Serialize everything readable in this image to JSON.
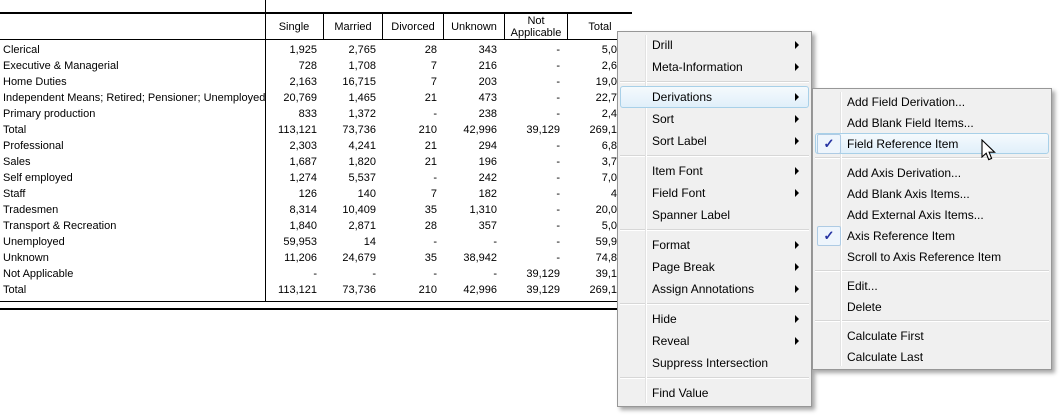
{
  "table": {
    "columns": [
      "Single",
      "Married",
      "Divorced",
      "Unknown",
      "Not Applicable",
      "Total"
    ],
    "rows": [
      {
        "label": "Clerical",
        "values": [
          "1,925",
          "2,765",
          "28",
          "343",
          "-",
          "5,0"
        ]
      },
      {
        "label": "Executive & Managerial",
        "values": [
          "728",
          "1,708",
          "7",
          "216",
          "-",
          "2,6"
        ]
      },
      {
        "label": "Home Duties",
        "values": [
          "2,163",
          "16,715",
          "7",
          "203",
          "-",
          "19,0"
        ]
      },
      {
        "label": "Independent Means; Retired; Pensioner; Unemployed",
        "values": [
          "20,769",
          "1,465",
          "21",
          "473",
          "-",
          "22,7"
        ]
      },
      {
        "label": "Primary production",
        "values": [
          "833",
          "1,372",
          "-",
          "238",
          "-",
          "2,4"
        ]
      },
      {
        "label": "Total",
        "values": [
          "113,121",
          "73,736",
          "210",
          "42,996",
          "39,129",
          "269,1"
        ]
      },
      {
        "label": "Professional",
        "values": [
          "2,303",
          "4,241",
          "21",
          "294",
          "-",
          "6,8"
        ]
      },
      {
        "label": "Sales",
        "values": [
          "1,687",
          "1,820",
          "21",
          "196",
          "-",
          "3,7"
        ]
      },
      {
        "label": "Self employed",
        "values": [
          "1,274",
          "5,537",
          "-",
          "242",
          "-",
          "7,0"
        ]
      },
      {
        "label": "Staff",
        "values": [
          "126",
          "140",
          "7",
          "182",
          "-",
          "4"
        ]
      },
      {
        "label": "Tradesmen",
        "values": [
          "8,314",
          "10,409",
          "35",
          "1,310",
          "-",
          "20,0"
        ]
      },
      {
        "label": "Transport & Recreation",
        "values": [
          "1,840",
          "2,871",
          "28",
          "357",
          "-",
          "5,0"
        ]
      },
      {
        "label": "Unemployed",
        "values": [
          "59,953",
          "14",
          "-",
          "-",
          "-",
          "59,9"
        ]
      },
      {
        "label": "Unknown",
        "values": [
          "11,206",
          "24,679",
          "35",
          "38,942",
          "-",
          "74,8"
        ]
      },
      {
        "label": "Not Applicable",
        "values": [
          "-",
          "-",
          "-",
          "-",
          "39,129",
          "39,1"
        ]
      },
      {
        "label": "Total",
        "values": [
          "113,121",
          "73,736",
          "210",
          "42,996",
          "39,129",
          "269,1"
        ]
      }
    ]
  },
  "context_menu": {
    "items": [
      {
        "label": "Drill",
        "submenu": true
      },
      {
        "label": "Meta-Information",
        "submenu": true
      },
      {
        "separator": true
      },
      {
        "label": "Derivations",
        "submenu": true,
        "highlighted": true
      },
      {
        "label": "Sort",
        "submenu": true
      },
      {
        "label": "Sort Label",
        "submenu": true
      },
      {
        "separator": true
      },
      {
        "label": "Item Font",
        "submenu": true
      },
      {
        "label": "Field Font",
        "submenu": true
      },
      {
        "label": "Spanner Label"
      },
      {
        "separator": true
      },
      {
        "label": "Format",
        "submenu": true
      },
      {
        "label": "Page Break",
        "submenu": true
      },
      {
        "label": "Assign Annotations",
        "submenu": true
      },
      {
        "separator": true
      },
      {
        "label": "Hide",
        "submenu": true
      },
      {
        "label": "Reveal",
        "submenu": true
      },
      {
        "label": "Suppress Intersection"
      },
      {
        "separator": true
      },
      {
        "label": "Find Value"
      }
    ]
  },
  "derivations_submenu": {
    "items": [
      {
        "label": "Add Field Derivation..."
      },
      {
        "label": "Add Blank Field Items..."
      },
      {
        "label": "Field Reference Item",
        "checked": true,
        "highlighted": true
      },
      {
        "separator": true
      },
      {
        "label": "Add Axis Derivation..."
      },
      {
        "label": "Add Blank Axis Items..."
      },
      {
        "label": "Add External Axis Items..."
      },
      {
        "label": "Axis Reference Item",
        "checked": true
      },
      {
        "label": "Scroll to Axis Reference Item"
      },
      {
        "separator": true
      },
      {
        "label": "Edit..."
      },
      {
        "label": "Delete"
      },
      {
        "separator": true
      },
      {
        "label": "Calculate First"
      },
      {
        "label": "Calculate Last"
      }
    ]
  },
  "icons": {
    "checkmark": "✓"
  },
  "colors": {
    "menu_background": "#f0f0f0",
    "menu_border": "#979797",
    "highlight_fill": "#e0effa",
    "highlight_border": "#a8d0e8",
    "checkmark_color": "#2633a2",
    "table_line": "#000000"
  }
}
